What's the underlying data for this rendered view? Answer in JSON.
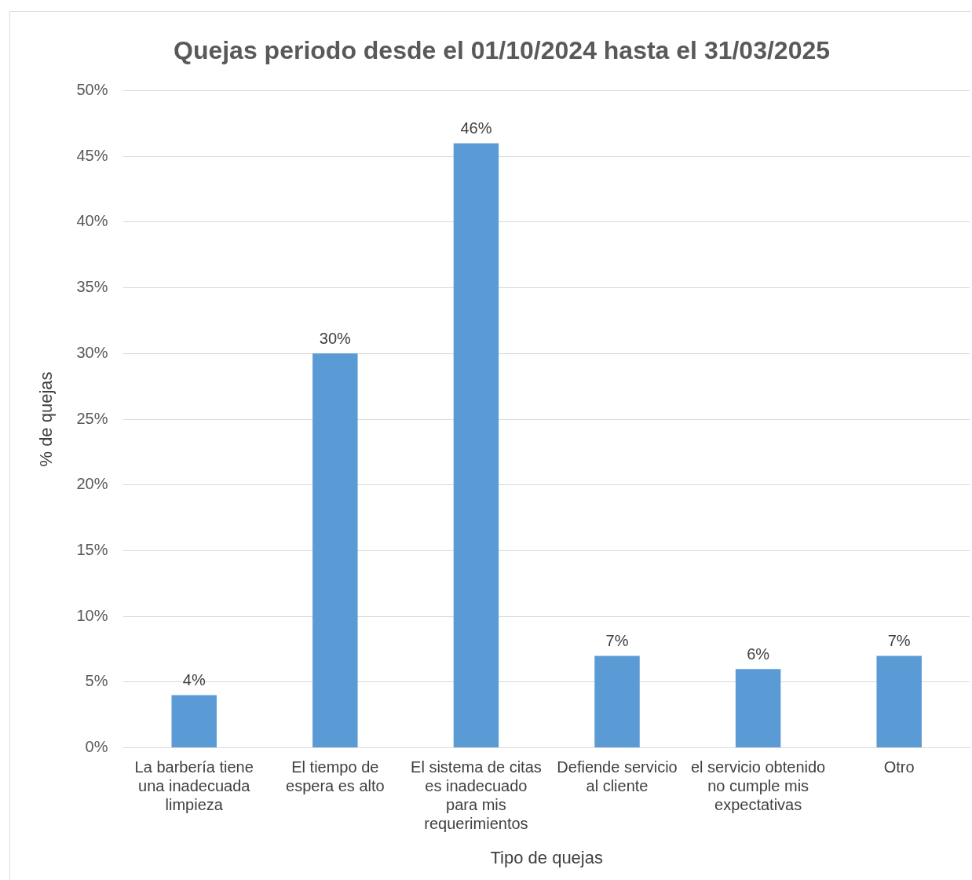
{
  "chart_data": {
    "type": "bar",
    "title": "Quejas periodo desde el 01/10/2024 hasta el 31/03/2025",
    "xlabel": "Tipo de quejas",
    "ylabel": "% de quejas",
    "categories": [
      "La barbería tiene una inadecuada limpieza",
      "El tiempo de espera es alto",
      "El sistema de citas es inadecuado para mis requerimientos",
      "Defiende servicio al cliente",
      "el servicio obtenido no cumple mis expectativas",
      "Otro"
    ],
    "values": [
      4,
      30,
      46,
      7,
      6,
      7
    ],
    "color": "#5b9bd5",
    "value_labels": [
      "4%",
      "30%",
      "46%",
      "7%",
      "6%",
      "7%"
    ],
    "ylim": [
      0,
      50
    ],
    "yticks": [
      {
        "value": 0,
        "label": "0%"
      },
      {
        "value": 5,
        "label": "5%"
      },
      {
        "value": 10,
        "label": "10%"
      },
      {
        "value": 15,
        "label": "15%"
      },
      {
        "value": 20,
        "label": "20%"
      },
      {
        "value": 25,
        "label": "25%"
      },
      {
        "value": 30,
        "label": "30%"
      },
      {
        "value": 35,
        "label": "35%"
      },
      {
        "value": 40,
        "label": "40%"
      },
      {
        "value": 45,
        "label": "45%"
      },
      {
        "value": 50,
        "label": "50%"
      }
    ],
    "grid": "y",
    "legend": false
  }
}
